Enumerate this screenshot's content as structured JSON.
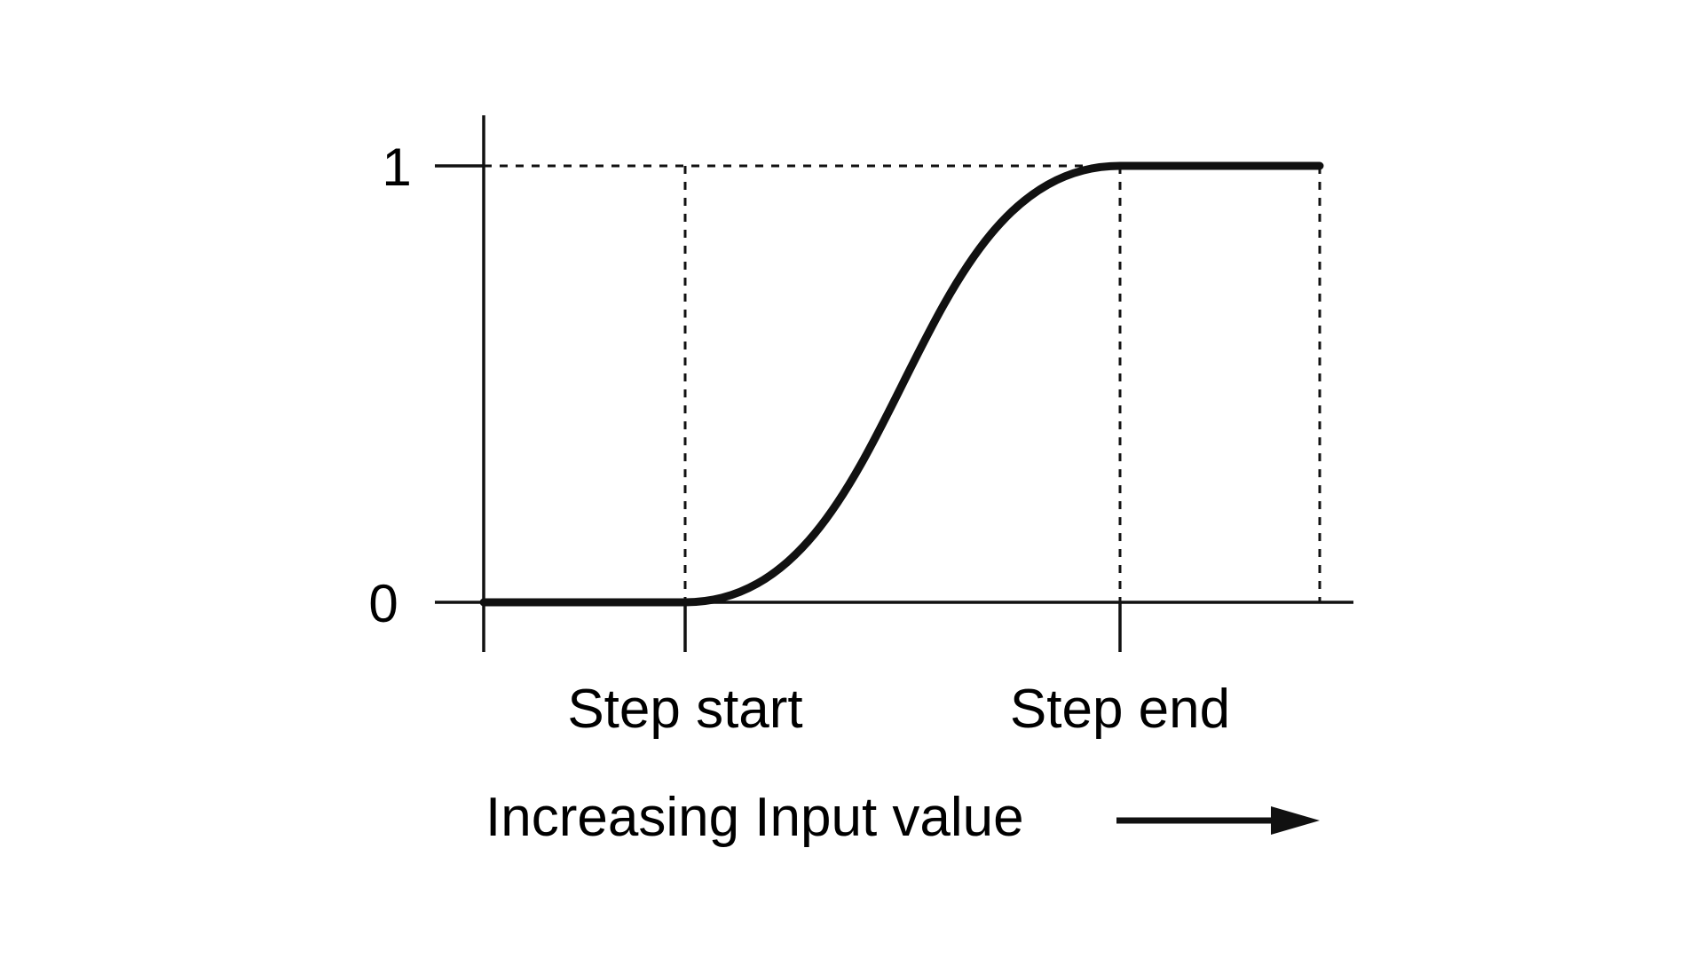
{
  "y_axis": {
    "tick_labels": [
      "1",
      "0"
    ]
  },
  "x_axis": {
    "tick_labels": [
      "Step start",
      "Step end"
    ],
    "caption": "Increasing Input value"
  },
  "colors": {
    "line": "#111111",
    "background": "#ffffff"
  }
}
